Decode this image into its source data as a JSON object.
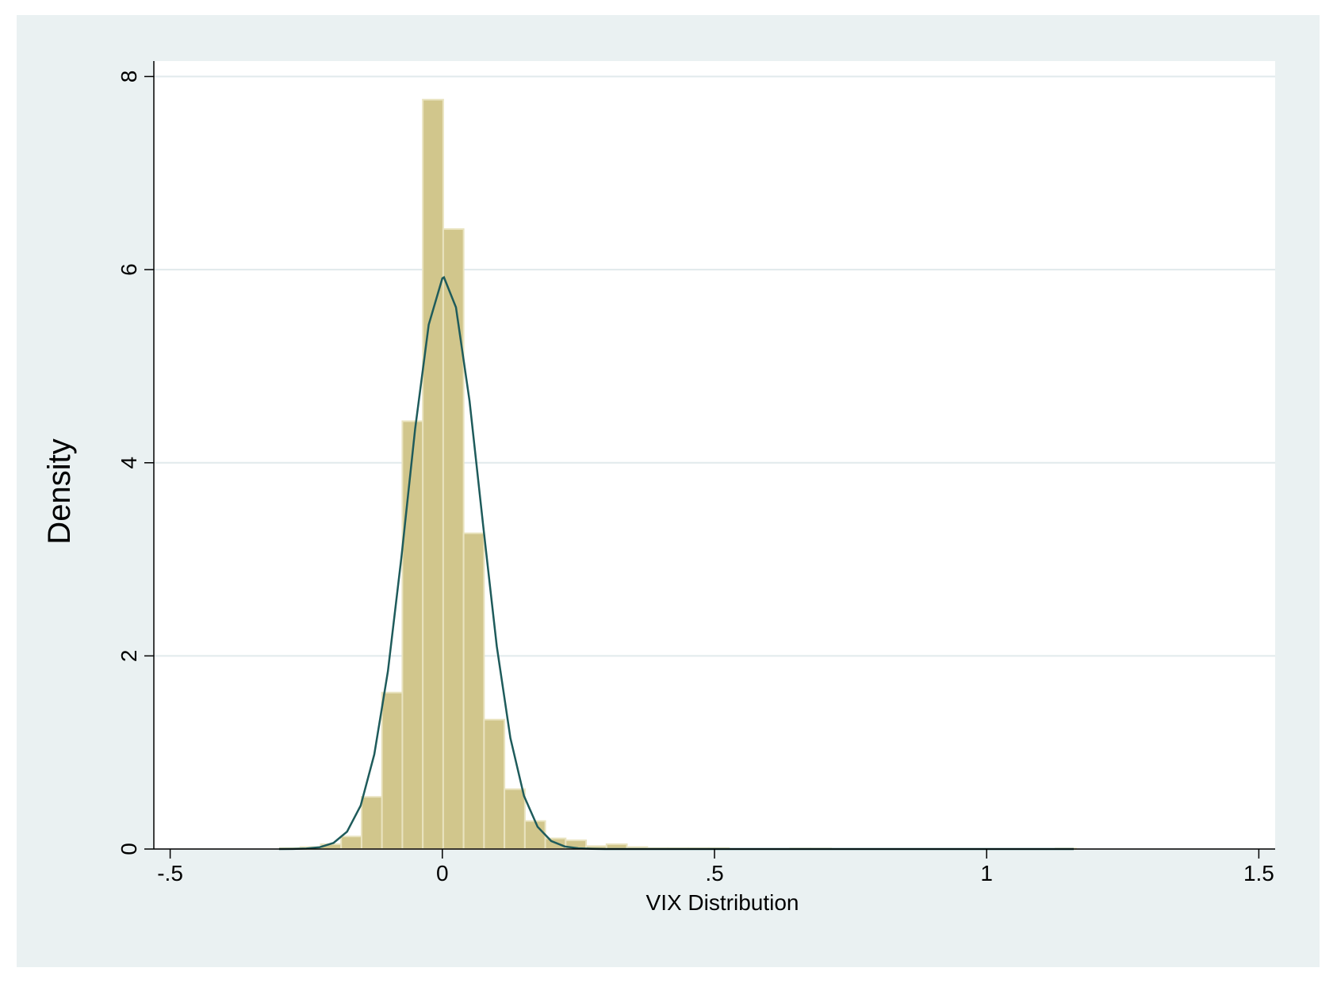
{
  "chart_data": {
    "type": "histogram",
    "x_label": "VIX Distribution",
    "y_label": "Density",
    "bins": [
      -0.2984,
      -0.2609,
      -0.2234,
      -0.1859,
      -0.1484,
      -0.1109,
      -0.0734,
      -0.0359,
      0.0016,
      0.0391,
      0.0766,
      0.1141,
      0.1516,
      0.1891,
      0.2266,
      0.2641,
      0.3016,
      0.3391,
      0.3766,
      0.4141,
      0.4516,
      0.4891,
      0.5266,
      0.5641,
      0.6016,
      0.6391,
      0.6766,
      0.7141,
      0.7516,
      0.7891,
      0.8266,
      0.8641,
      0.9016,
      0.9391,
      0.9766,
      1.0141,
      1.0516,
      1.0891,
      1.1266,
      1.1641
    ],
    "values": [
      0.01,
      0.02,
      0.05,
      0.13,
      0.54,
      1.62,
      4.43,
      7.76,
      6.42,
      3.27,
      1.34,
      0.62,
      0.29,
      0.11,
      0.09,
      0.03,
      0.05,
      0.02,
      0.01,
      0.01,
      0.01,
      0.01,
      0,
      0,
      0,
      0.005,
      0.005,
      0,
      0,
      0,
      0,
      0,
      0,
      0,
      0,
      0,
      0,
      0,
      0.005
    ],
    "color": "#d1c68c",
    "edge_color": "#e9e3bf",
    "curve": {
      "color": "#1e5b5b",
      "x": [
        -0.3,
        -0.275,
        -0.25,
        -0.225,
        -0.2,
        -0.175,
        -0.15,
        -0.125,
        -0.1,
        -0.075,
        -0.05,
        -0.025,
        0,
        0.003,
        0.025,
        0.05,
        0.075,
        0.1,
        0.125,
        0.15,
        0.175,
        0.2,
        0.225,
        0.25,
        0.275,
        0.3,
        0.5,
        0.8,
        1.16
      ],
      "y": [
        0,
        0.001,
        0.005,
        0.019,
        0.063,
        0.18,
        0.45,
        0.98,
        1.84,
        3.03,
        4.35,
        5.43,
        5.91,
        5.92,
        5.61,
        4.64,
        3.35,
        2.1,
        1.15,
        0.55,
        0.23,
        0.083,
        0.026,
        0.007,
        0.002,
        0,
        0,
        0,
        0
      ]
    },
    "xlim": [
      -0.53,
      1.53
    ],
    "ylim": [
      0,
      8.16
    ],
    "xticks": [
      {
        "value": -0.5,
        "label": "-.5"
      },
      0,
      {
        "value": 0.5,
        "label": ".5"
      },
      1,
      1.5
    ],
    "yticks": [
      0,
      2,
      4,
      6,
      8
    ],
    "grid": true
  }
}
